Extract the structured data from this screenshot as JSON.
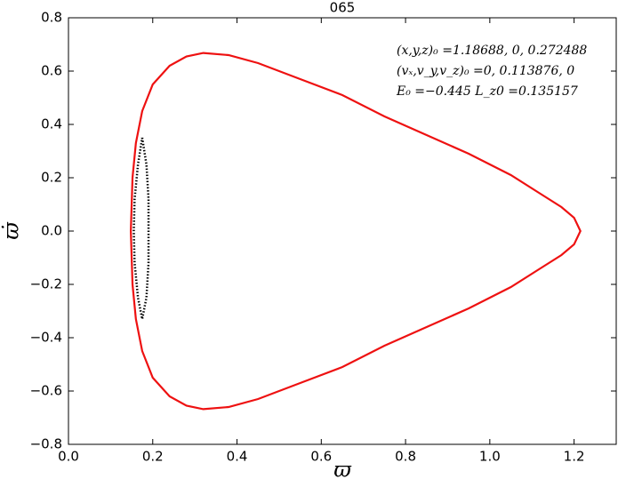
{
  "chart_data": {
    "type": "line",
    "title": "065",
    "xlabel": "ϖ",
    "ylabel": "ϖ̇",
    "annotations": [
      "(x,y,z)₀ =1.18688, 0, 0.272488",
      "(vₓ,v_y,v_z)₀ =0, 0.113876, 0",
      "E₀ =−0.445  L_z0 =0.135157"
    ],
    "xlim": [
      0,
      1.3
    ],
    "ylim": [
      -0.8,
      0.8
    ],
    "xticks": [
      {
        "value": 0,
        "label": "0.0"
      },
      0.2,
      0.4,
      0.6,
      0.8,
      {
        "value": 1,
        "label": "1.0"
      },
      1.2
    ],
    "yticks": [
      {
        "value": -0.8,
        "label": "−0.8"
      },
      {
        "value": -0.6,
        "label": "−0.6"
      },
      {
        "value": -0.4,
        "label": "−0.4"
      },
      {
        "value": -0.2,
        "label": "−0.2"
      },
      {
        "value": 0,
        "label": "0.0"
      },
      0.2,
      0.4,
      0.6,
      0.8
    ],
    "series": [
      {
        "color": "#ee1111",
        "linestyle": "solid",
        "x": [
          0.148,
          0.152,
          0.16,
          0.175,
          0.2,
          0.24,
          0.28,
          0.32,
          0.38,
          0.45,
          0.55,
          0.65,
          0.75,
          0.85,
          0.95,
          1.05,
          1.12,
          1.17,
          1.2,
          1.215,
          1.2,
          1.17,
          1.12,
          1.05,
          0.95,
          0.85,
          0.75,
          0.65,
          0.55,
          0.45,
          0.38,
          0.32,
          0.28,
          0.24,
          0.2,
          0.175,
          0.16,
          0.152,
          0.148
        ],
        "values": [
          0,
          0.2,
          0.33,
          0.45,
          0.55,
          0.62,
          0.655,
          0.668,
          0.66,
          0.63,
          0.57,
          0.51,
          0.43,
          0.36,
          0.29,
          0.21,
          0.14,
          0.09,
          0.05,
          0,
          -0.05,
          -0.09,
          -0.14,
          -0.21,
          -0.29,
          -0.36,
          -0.43,
          -0.51,
          -0.57,
          -0.63,
          -0.66,
          -0.668,
          -0.655,
          -0.62,
          -0.55,
          -0.45,
          -0.33,
          -0.2,
          0
        ]
      },
      {
        "color": "#000000",
        "linestyle": "dotted",
        "x": [
          0.175,
          0.185,
          0.19,
          0.19,
          0.19,
          0.185,
          0.175,
          0.165,
          0.157,
          0.155,
          0.157,
          0.165,
          0.175
        ],
        "values": [
          0.35,
          0.25,
          0.12,
          0,
          -0.12,
          -0.25,
          -0.33,
          -0.25,
          -0.12,
          0,
          0.12,
          0.25,
          0.35
        ]
      }
    ]
  }
}
